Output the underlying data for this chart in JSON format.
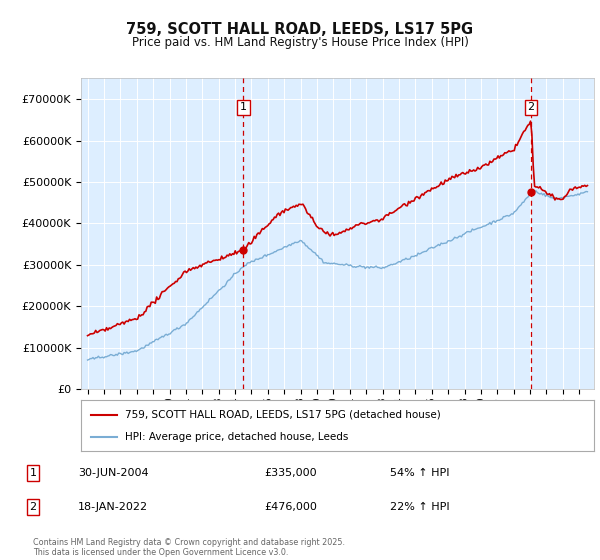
{
  "title1": "759, SCOTT HALL ROAD, LEEDS, LS17 5PG",
  "title2": "Price paid vs. HM Land Registry's House Price Index (HPI)",
  "legend_line1": "759, SCOTT HALL ROAD, LEEDS, LS17 5PG (detached house)",
  "legend_line2": "HPI: Average price, detached house, Leeds",
  "footer": "Contains HM Land Registry data © Crown copyright and database right 2025.\nThis data is licensed under the Open Government Licence v3.0.",
  "annotation1_date": "30-JUN-2004",
  "annotation1_price": "£335,000",
  "annotation1_hpi": "54% ↑ HPI",
  "annotation2_date": "18-JAN-2022",
  "annotation2_price": "£476,000",
  "annotation2_hpi": "22% ↑ HPI",
  "sale1_year": 2004.5,
  "sale1_price": 335000,
  "sale2_year": 2022.05,
  "sale2_price": 476000,
  "red_color": "#cc0000",
  "blue_color": "#7aadd4",
  "background_color": "#ddeeff",
  "ylim_min": 0,
  "ylim_max": 750000,
  "x_start_year": 1995,
  "x_end_year": 2025
}
